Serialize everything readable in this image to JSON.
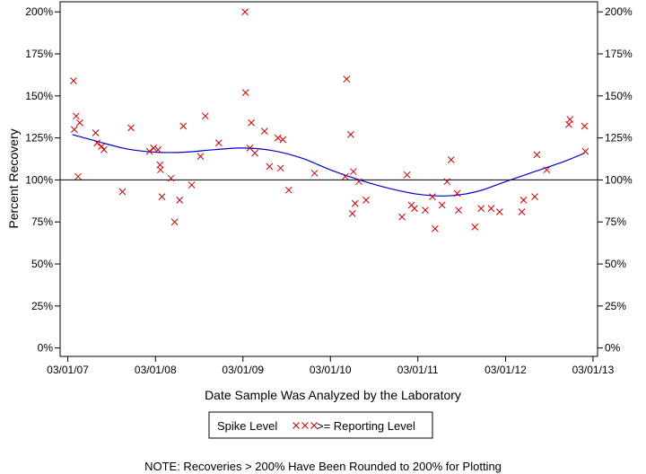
{
  "chart_data": {
    "type": "scatter",
    "xlabel": "Date Sample Was Analyzed by the Laboratory",
    "ylabel": "Percent Recovery",
    "x_axis_type": "date",
    "x_ticks": [
      "03/01/07",
      "03/01/08",
      "03/01/09",
      "03/01/10",
      "03/01/11",
      "03/01/12",
      "03/01/13"
    ],
    "x_tick_dates": [
      "2007-03-01",
      "2008-03-01",
      "2009-03-01",
      "2010-03-01",
      "2011-03-01",
      "2012-03-01",
      "2013-03-01"
    ],
    "xlim": [
      "2007-01-28",
      "2013-03-20"
    ],
    "y_ticks": [
      0,
      25,
      50,
      75,
      100,
      125,
      150,
      175,
      200
    ],
    "y_tick_labels": [
      "0%",
      "25%",
      "50%",
      "75%",
      "100%",
      "125%",
      "150%",
      "175%",
      "200%"
    ],
    "ylim": [
      -5,
      206
    ],
    "y_axis_right_mirror": true,
    "reference_line": 100,
    "grid": false,
    "legend_position": "bottom-center",
    "legend_label_line": "Spike Level",
    "series": [
      {
        "name": ">= Reporting Level",
        "marker": "x",
        "color": "#cc0000",
        "points": [
          {
            "x": "2007-03-25",
            "y": 159
          },
          {
            "x": "2007-03-28",
            "y": 130
          },
          {
            "x": "2007-04-05",
            "y": 138
          },
          {
            "x": "2007-04-13",
            "y": 102
          },
          {
            "x": "2007-04-20",
            "y": 134
          },
          {
            "x": "2007-06-25",
            "y": 128
          },
          {
            "x": "2007-07-01",
            "y": 122
          },
          {
            "x": "2007-07-20",
            "y": 120
          },
          {
            "x": "2007-07-30",
            "y": 118
          },
          {
            "x": "2007-10-15",
            "y": 93
          },
          {
            "x": "2007-11-20",
            "y": 131
          },
          {
            "x": "2008-02-05",
            "y": 117
          },
          {
            "x": "2008-02-22",
            "y": 119
          },
          {
            "x": "2008-03-12",
            "y": 118
          },
          {
            "x": "2008-03-20",
            "y": 109
          },
          {
            "x": "2008-03-22",
            "y": 106
          },
          {
            "x": "2008-03-28",
            "y": 90
          },
          {
            "x": "2008-05-05",
            "y": 101
          },
          {
            "x": "2008-05-20",
            "y": 75
          },
          {
            "x": "2008-06-10",
            "y": 88
          },
          {
            "x": "2008-06-25",
            "y": 132
          },
          {
            "x": "2008-07-30",
            "y": 97
          },
          {
            "x": "2008-09-05",
            "y": 114
          },
          {
            "x": "2008-09-25",
            "y": 138
          },
          {
            "x": "2008-11-20",
            "y": 122
          },
          {
            "x": "2009-03-10",
            "y": 200
          },
          {
            "x": "2009-03-12",
            "y": 152
          },
          {
            "x": "2009-03-30",
            "y": 119
          },
          {
            "x": "2009-04-05",
            "y": 134
          },
          {
            "x": "2009-04-20",
            "y": 116
          },
          {
            "x": "2009-05-30",
            "y": 129
          },
          {
            "x": "2009-06-20",
            "y": 108
          },
          {
            "x": "2009-07-25",
            "y": 125
          },
          {
            "x": "2009-08-05",
            "y": 107
          },
          {
            "x": "2009-08-15",
            "y": 124
          },
          {
            "x": "2009-09-08",
            "y": 94
          },
          {
            "x": "2009-12-25",
            "y": 104
          },
          {
            "x": "2010-05-02",
            "y": 102
          },
          {
            "x": "2010-05-08",
            "y": 160
          },
          {
            "x": "2010-05-25",
            "y": 127
          },
          {
            "x": "2010-06-01",
            "y": 80
          },
          {
            "x": "2010-06-05",
            "y": 105
          },
          {
            "x": "2010-06-12",
            "y": 86
          },
          {
            "x": "2010-06-28",
            "y": 99
          },
          {
            "x": "2010-07-28",
            "y": 88
          },
          {
            "x": "2010-12-25",
            "y": 78
          },
          {
            "x": "2011-01-15",
            "y": 103
          },
          {
            "x": "2011-02-02",
            "y": 85
          },
          {
            "x": "2011-02-15",
            "y": 83
          },
          {
            "x": "2011-04-01",
            "y": 82
          },
          {
            "x": "2011-05-01",
            "y": 90
          },
          {
            "x": "2011-05-12",
            "y": 71
          },
          {
            "x": "2011-06-10",
            "y": 85
          },
          {
            "x": "2011-07-01",
            "y": 99
          },
          {
            "x": "2011-07-18",
            "y": 112
          },
          {
            "x": "2011-08-12",
            "y": 92
          },
          {
            "x": "2011-08-18",
            "y": 82
          },
          {
            "x": "2011-10-25",
            "y": 72
          },
          {
            "x": "2011-11-20",
            "y": 83
          },
          {
            "x": "2012-01-01",
            "y": 83
          },
          {
            "x": "2012-02-05",
            "y": 81
          },
          {
            "x": "2012-05-08",
            "y": 81
          },
          {
            "x": "2012-05-15",
            "y": 88
          },
          {
            "x": "2012-07-01",
            "y": 90
          },
          {
            "x": "2012-07-10",
            "y": 115
          },
          {
            "x": "2012-08-20",
            "y": 106
          },
          {
            "x": "2012-11-20",
            "y": 133
          },
          {
            "x": "2012-11-25",
            "y": 136
          },
          {
            "x": "2013-01-25",
            "y": 132
          },
          {
            "x": "2013-01-28",
            "y": 117
          }
        ]
      },
      {
        "name": "",
        "type": "line",
        "color": "#0000cc",
        "points": [
          {
            "x": "2007-03-20",
            "y": 127
          },
          {
            "x": "2007-07-01",
            "y": 123
          },
          {
            "x": "2007-11-01",
            "y": 118.5
          },
          {
            "x": "2008-03-01",
            "y": 116.5
          },
          {
            "x": "2008-07-01",
            "y": 116.5
          },
          {
            "x": "2008-11-01",
            "y": 118
          },
          {
            "x": "2009-03-01",
            "y": 119
          },
          {
            "x": "2009-07-01",
            "y": 117.5
          },
          {
            "x": "2009-11-01",
            "y": 113
          },
          {
            "x": "2010-03-01",
            "y": 106
          },
          {
            "x": "2010-07-01",
            "y": 100
          },
          {
            "x": "2010-11-01",
            "y": 95
          },
          {
            "x": "2011-03-01",
            "y": 91.5
          },
          {
            "x": "2011-07-01",
            "y": 90.5
          },
          {
            "x": "2011-11-01",
            "y": 93
          },
          {
            "x": "2012-03-01",
            "y": 99
          },
          {
            "x": "2012-07-01",
            "y": 105
          },
          {
            "x": "2012-11-01",
            "y": 111
          },
          {
            "x": "2013-01-25",
            "y": 116
          }
        ]
      }
    ],
    "note": "NOTE: Recoveries > 200% Have Been Rounded to 200% for Plotting"
  }
}
